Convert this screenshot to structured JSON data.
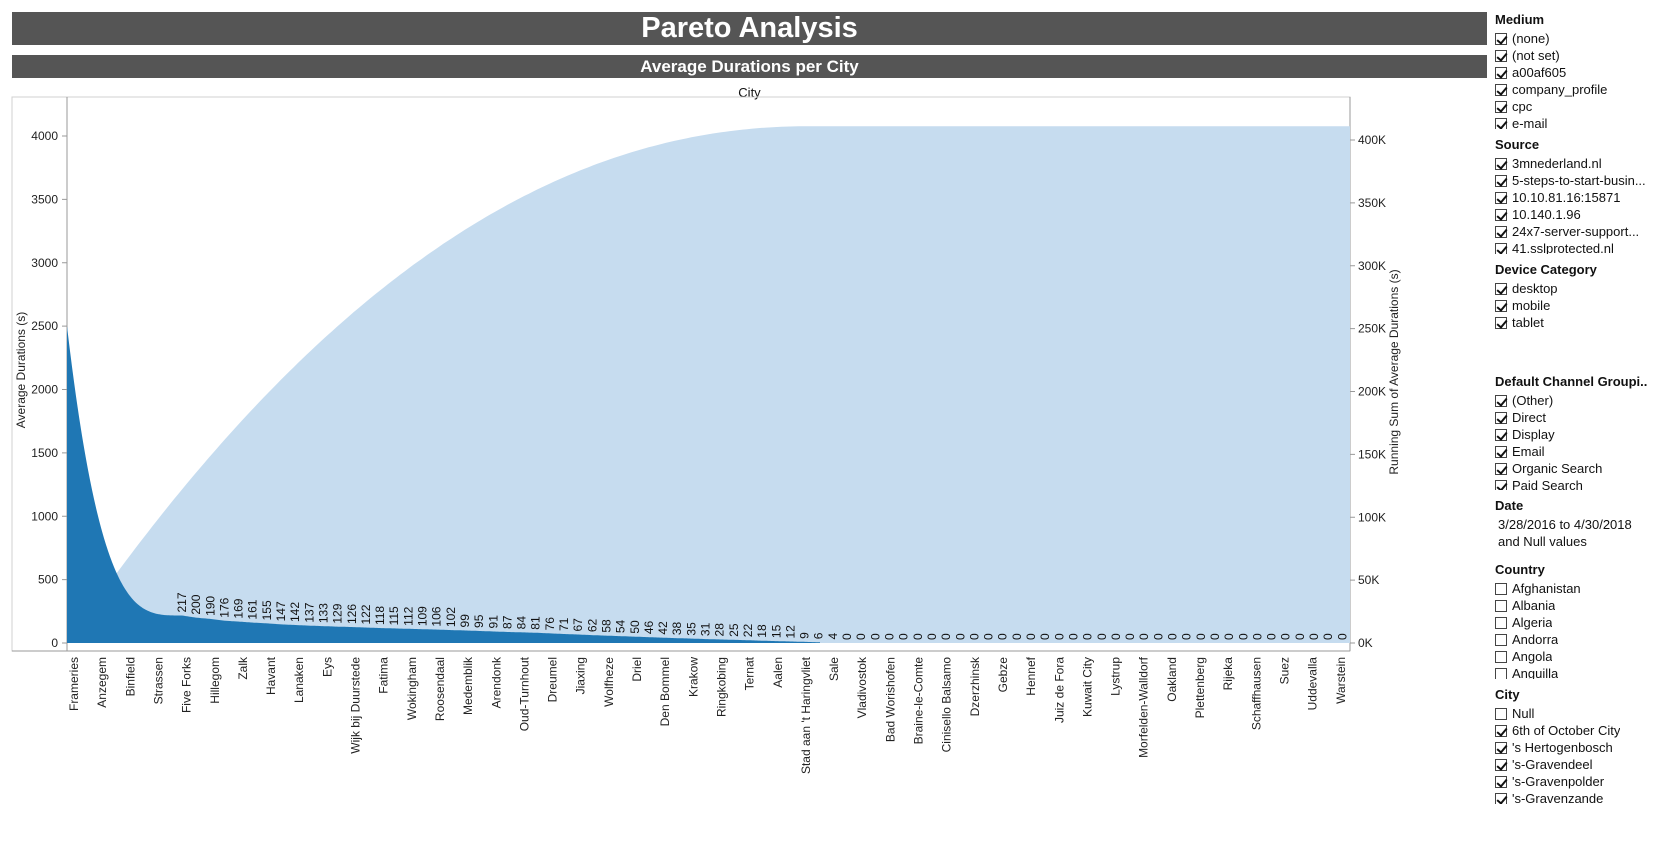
{
  "title": "Pareto Analysis",
  "subtitle": "Average Durations per City",
  "column_label": "City",
  "chart_data": {
    "type": "bar",
    "combined_with": "area",
    "xlabel": "City",
    "ylabel": "Average Durations (s)",
    "y2label": "Running Sum of Average Durations (s)",
    "ylim": [
      0,
      4200
    ],
    "y2lim": [
      0,
      420000
    ],
    "yticks": [
      "0",
      "500",
      "1000",
      "1500",
      "2000",
      "2500",
      "3000",
      "3500",
      "4000"
    ],
    "y2ticks": [
      "0K",
      "50K",
      "100K",
      "150K",
      "200K",
      "250K",
      "300K",
      "350K",
      "400K"
    ],
    "bar_color": "#1f77b4",
    "area_color": "#c6dcef",
    "bar_peak_value": 2500,
    "running_sum_total": 411000,
    "categories": [
      "Frameries",
      "Anzegem",
      "Binfield",
      "Strassen",
      "Five Forks",
      "Hillegom",
      "Zalk",
      "Havant",
      "Lanaken",
      "Eys",
      "Wijk bij Duurstede",
      "Fatima",
      "Wokingham",
      "Roosendaal",
      "Medemblik",
      "Arendonk",
      "Oud-Turnhout",
      "Dreumel",
      "Jiaxing",
      "Wolfheze",
      "Driel",
      "Den Bommel",
      "Krakow",
      "Ringkobing",
      "Ternat",
      "Aalen",
      "Stad aan 't Haringvliet",
      "Sale",
      "Vladivostok",
      "Bad Worishofen",
      "Braine-le-Comte",
      "Cinisello Balsamo",
      "Dzerzhinsk",
      "Gebze",
      "Hennef",
      "Juiz de Fora",
      "Kuwait City",
      "Lystrup",
      "Morfelden-Walldorf",
      "Oakland",
      "Plettenberg",
      "Rijeka",
      "Schaffhausen",
      "Suez",
      "Uddevalla",
      "Warstein"
    ],
    "data_labels": [
      "217",
      "200",
      "190",
      "176",
      "169",
      "161",
      "155",
      "147",
      "142",
      "137",
      "133",
      "129",
      "126",
      "122",
      "118",
      "115",
      "112",
      "109",
      "106",
      "102",
      "99",
      "95",
      "91",
      "87",
      "84",
      "81",
      "76",
      "71",
      "67",
      "62",
      "58",
      "54",
      "50",
      "46",
      "42",
      "38",
      "35",
      "31",
      "28",
      "25",
      "22",
      "18",
      "15",
      "12",
      "9",
      "6",
      "4",
      "0",
      "0",
      "0",
      "0",
      "0",
      "0",
      "0",
      "0",
      "0",
      "0",
      "0",
      "0",
      "0",
      "0",
      "0",
      "0",
      "0",
      "0",
      "0",
      "0",
      "0",
      "0",
      "0",
      "0",
      "0",
      "0",
      "0",
      "0",
      "0",
      "0",
      "0",
      "0",
      "0",
      "0",
      "0",
      "0"
    ]
  },
  "filters": {
    "medium": {
      "title": "Medium",
      "items": [
        {
          "label": "(none)",
          "checked": true
        },
        {
          "label": "(not set)",
          "checked": true
        },
        {
          "label": "a00af605",
          "checked": true
        },
        {
          "label": "company_profile",
          "checked": true
        },
        {
          "label": "cpc",
          "checked": true
        },
        {
          "label": "e-mail",
          "checked": true
        }
      ]
    },
    "source": {
      "title": "Source",
      "items": [
        {
          "label": "3mnederland.nl",
          "checked": true
        },
        {
          "label": "5-steps-to-start-busin...",
          "checked": true
        },
        {
          "label": "10.10.81.16:15871",
          "checked": true
        },
        {
          "label": "10.140.1.96",
          "checked": true
        },
        {
          "label": "24x7-server-support...",
          "checked": true
        },
        {
          "label": "41.sslprotected.nl",
          "checked": true
        }
      ]
    },
    "device": {
      "title": "Device Category",
      "items": [
        {
          "label": "desktop",
          "checked": true
        },
        {
          "label": "mobile",
          "checked": true
        },
        {
          "label": "tablet",
          "checked": true
        }
      ]
    },
    "channel": {
      "title": "Default Channel Groupi..",
      "items": [
        {
          "label": "(Other)",
          "checked": true
        },
        {
          "label": "Direct",
          "checked": true
        },
        {
          "label": "Display",
          "checked": true
        },
        {
          "label": "Email",
          "checked": true
        },
        {
          "label": "Organic Search",
          "checked": true
        },
        {
          "label": "Paid Search",
          "checked": true
        }
      ]
    },
    "date": {
      "title": "Date",
      "line1": "3/28/2016 to 4/30/2018",
      "line2": "and Null values"
    },
    "country": {
      "title": "Country",
      "items": [
        {
          "label": "Afghanistan",
          "checked": false
        },
        {
          "label": "Albania",
          "checked": false
        },
        {
          "label": "Algeria",
          "checked": false
        },
        {
          "label": "Andorra",
          "checked": false
        },
        {
          "label": "Angola",
          "checked": false
        },
        {
          "label": "Anguilla",
          "checked": false
        }
      ]
    },
    "city": {
      "title": "City",
      "items": [
        {
          "label": "Null",
          "checked": false
        },
        {
          "label": "6th of October City",
          "checked": true
        },
        {
          "label": "'s Hertogenbosch",
          "checked": true
        },
        {
          "label": "'s-Gravendeel",
          "checked": true
        },
        {
          "label": "'s-Gravenpolder",
          "checked": true
        },
        {
          "label": "'s-Gravenzande",
          "checked": true
        }
      ]
    }
  }
}
